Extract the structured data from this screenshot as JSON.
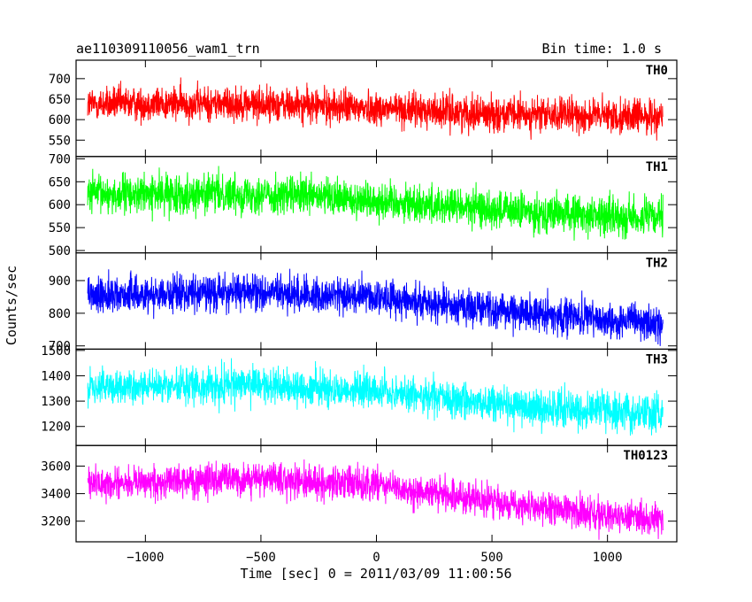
{
  "header": {
    "left": "ae110309110056_wam1_trn",
    "right": "Bin time: 1.0 s"
  },
  "chart_data": {
    "type": "line",
    "title": "ae110309110056_wam1_trn",
    "subtitle": "Bin time: 1.0 s",
    "xlabel": "Time [sec] 0 = 2011/03/09 11:00:56",
    "ylabel": "Counts/sec",
    "xlim": [
      -1300,
      1300
    ],
    "x_ticks": [
      -1000,
      -500,
      0,
      500,
      1000
    ],
    "x_tick_labels": [
      "−1000",
      "−500",
      "0",
      "500",
      "1000"
    ],
    "x_range_data": [
      -1250,
      1240
    ],
    "grid": false,
    "panels": [
      {
        "name": "TH0",
        "color": "#ff0000",
        "ylim": [
          510,
          745
        ],
        "y_ticks": [
          550,
          600,
          650,
          700
        ],
        "trend": {
          "x": [
            -1250,
            -600,
            0,
            600,
            1240
          ],
          "y": [
            638,
            640,
            628,
            612,
            608
          ]
        },
        "scatter_half_width": 38
      },
      {
        "name": "TH1",
        "color": "#00ff00",
        "ylim": [
          495,
          705
        ],
        "y_ticks": [
          500,
          550,
          600,
          650,
          700
        ],
        "trend": {
          "x": [
            -1250,
            -600,
            0,
            600,
            1240
          ],
          "y": [
            622,
            625,
            610,
            585,
            570
          ]
        },
        "scatter_half_width": 38
      },
      {
        "name": "TH2",
        "color": "#0000ff",
        "ylim": [
          690,
          985
        ],
        "y_ticks": [
          700,
          800,
          900
        ],
        "trend": {
          "x": [
            -1250,
            -600,
            0,
            600,
            1240
          ],
          "y": [
            855,
            865,
            850,
            805,
            765
          ]
        },
        "scatter_half_width": 50
      },
      {
        "name": "TH3",
        "color": "#00ffff",
        "ylim": [
          1125,
          1505
        ],
        "y_ticks": [
          1200,
          1300,
          1400,
          1500
        ],
        "trend": {
          "x": [
            -1250,
            -600,
            0,
            600,
            1240
          ],
          "y": [
            1350,
            1365,
            1340,
            1280,
            1250
          ]
        },
        "scatter_half_width": 65
      },
      {
        "name": "TH0123",
        "color": "#ff00ff",
        "ylim": [
          3050,
          3750
        ],
        "y_ticks": [
          3200,
          3400,
          3600
        ],
        "trend": {
          "x": [
            -1250,
            -600,
            0,
            600,
            1240
          ],
          "y": [
            3470,
            3510,
            3460,
            3320,
            3200
          ]
        },
        "scatter_half_width": 110
      }
    ]
  }
}
